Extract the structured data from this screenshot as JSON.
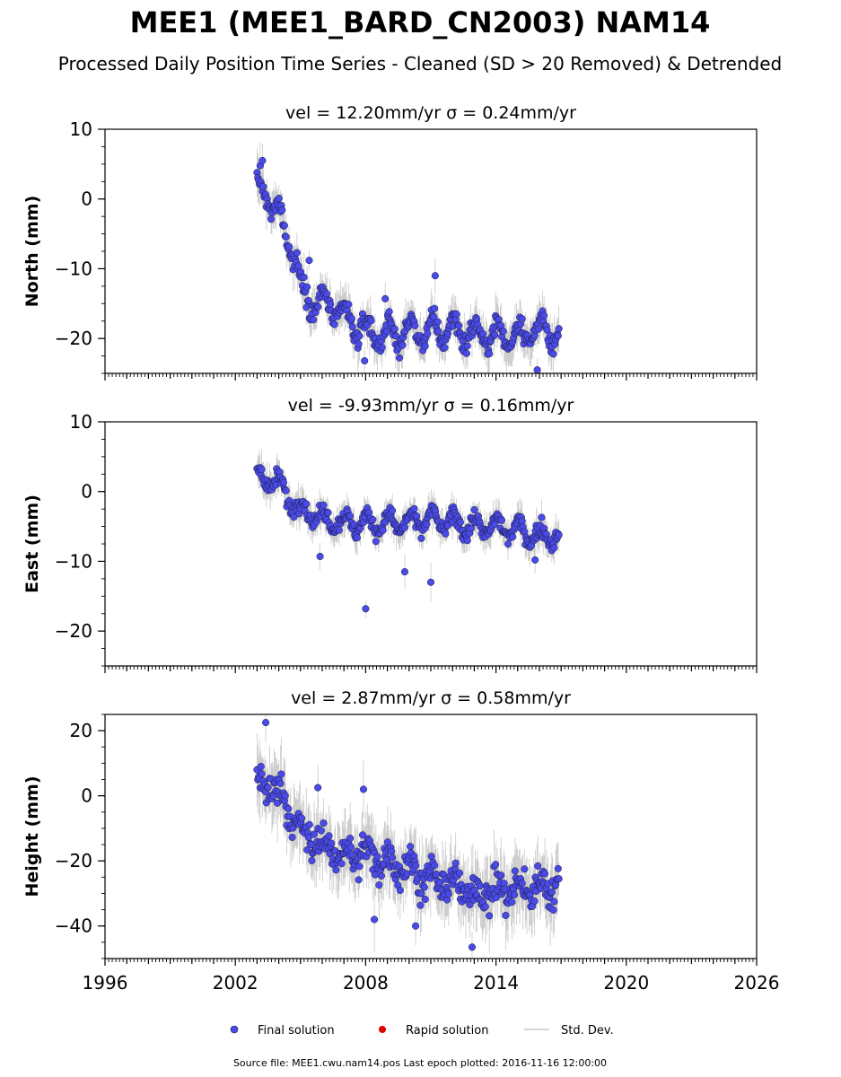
{
  "figure": {
    "title": "MEE1 (MEE1_BARD_CN2003) NAM14",
    "subtitle": "Processed Daily Position Time Series - Cleaned (SD > 20 Removed) & Detrended",
    "footer": "Source file: MEE1.cwu.nam14.pos  Last epoch plotted: 2016-11-16 12:00:00"
  },
  "legend": {
    "placement": "bottom-center",
    "items": [
      {
        "label": "Final solution",
        "color": "#4a4ae6",
        "marker": "circle"
      },
      {
        "label": "Rapid solution",
        "color": "#e00000",
        "marker": "circle"
      },
      {
        "label": "Std. Dev.",
        "color": "#c8c8c8",
        "marker": "line"
      }
    ]
  },
  "colors": {
    "final": "#4a4ae6",
    "final_edge": "#1a1a40",
    "stddev": "#9a9a9a"
  },
  "chart_data": [
    {
      "type": "scatter",
      "title": "vel = 12.20mm/yr   σ = 0.24mm/yr",
      "ylabel": "North (mm)",
      "xlim": [
        1996,
        2026
      ],
      "ylim": [
        -25,
        10
      ],
      "yticks": [
        "10",
        "0",
        "−10",
        "−20"
      ],
      "ytick_values": [
        10,
        0,
        -10,
        -20
      ],
      "series": [
        {
          "name": "Final solution",
          "trend": [
            [
              2003.0,
              1.5
            ],
            [
              2003.5,
              0.5
            ],
            [
              2004.0,
              -2.5
            ],
            [
              2004.5,
              -6.0
            ],
            [
              2004.8,
              -8.5
            ],
            [
              2005.0,
              -13.0
            ],
            [
              2005.5,
              -14.5
            ],
            [
              2006.0,
              -15.0
            ],
            [
              2006.5,
              -15.5
            ],
            [
              2007.0,
              -17.0
            ],
            [
              2007.5,
              -18.0
            ],
            [
              2008.0,
              -19.0
            ],
            [
              2009.0,
              -19.5
            ],
            [
              2010.0,
              -19.0
            ],
            [
              2011.0,
              -19.0
            ],
            [
              2012.0,
              -18.5
            ],
            [
              2013.0,
              -19.5
            ],
            [
              2014.0,
              -19.5
            ],
            [
              2015.0,
              -19.5
            ],
            [
              2016.0,
              -18.5
            ],
            [
              2016.9,
              -20.0
            ]
          ],
          "seasonal_amplitude": 1.8,
          "scatter_sd": 1.0,
          "outliers": [
            [
              2003.25,
              5.5
            ],
            [
              2005.4,
              -8.8
            ],
            [
              2008.9,
              -14.3
            ],
            [
              2011.2,
              -11.0
            ],
            [
              2007.95,
              -23.2
            ],
            [
              2015.9,
              -24.5
            ]
          ]
        }
      ]
    },
    {
      "type": "scatter",
      "title": "vel = -9.93mm/yr   σ = 0.16mm/yr",
      "ylabel": "East (mm)",
      "xlim": [
        1996,
        2026
      ],
      "ylim": [
        -25,
        10
      ],
      "yticks": [
        "10",
        "0",
        "−10",
        "−20"
      ],
      "ytick_values": [
        10,
        0,
        -10,
        -20
      ],
      "series": [
        {
          "name": "Final solution",
          "trend": [
            [
              2003.0,
              2.0
            ],
            [
              2003.5,
              2.0
            ],
            [
              2004.0,
              1.0
            ],
            [
              2004.5,
              -1.0
            ],
            [
              2005.0,
              -2.5
            ],
            [
              2005.5,
              -3.0
            ],
            [
              2006.0,
              -4.0
            ],
            [
              2006.5,
              -4.0
            ],
            [
              2007.0,
              -4.5
            ],
            [
              2008.0,
              -4.5
            ],
            [
              2009.0,
              -4.5
            ],
            [
              2010.0,
              -4.5
            ],
            [
              2011.0,
              -4.0
            ],
            [
              2012.0,
              -4.5
            ],
            [
              2013.0,
              -5.0
            ],
            [
              2014.0,
              -5.0
            ],
            [
              2015.0,
              -5.5
            ],
            [
              2016.0,
              -6.5
            ],
            [
              2016.9,
              -6.0
            ]
          ],
          "seasonal_amplitude": 1.3,
          "scatter_sd": 0.8,
          "outliers": [
            [
              2005.9,
              -9.3
            ],
            [
              2008.0,
              -16.8
            ],
            [
              2009.8,
              -11.5
            ],
            [
              2011.0,
              -13.0
            ],
            [
              2015.8,
              -9.8
            ]
          ]
        }
      ]
    },
    {
      "type": "scatter",
      "title": "vel = 2.87mm/yr   σ = 0.58mm/yr",
      "ylabel": "Height (mm)",
      "xlim": [
        1996,
        2026
      ],
      "ylim": [
        -50,
        25
      ],
      "xticks": [
        "1996",
        "2002",
        "2008",
        "2014",
        "2020",
        "2026"
      ],
      "xtick_values": [
        1996,
        2002,
        2008,
        2014,
        2020,
        2026
      ],
      "yticks": [
        "20",
        "0",
        "−20",
        "−40"
      ],
      "ytick_values": [
        20,
        0,
        -20,
        -40
      ],
      "series": [
        {
          "name": "Final solution",
          "trend": [
            [
              2003.0,
              3.0
            ],
            [
              2003.5,
              4.0
            ],
            [
              2004.0,
              1.0
            ],
            [
              2004.5,
              -4.0
            ],
            [
              2005.0,
              -12.0
            ],
            [
              2005.5,
              -13.0
            ],
            [
              2006.0,
              -15.0
            ],
            [
              2006.5,
              -17.0
            ],
            [
              2007.0,
              -18.0
            ],
            [
              2008.0,
              -18.0
            ],
            [
              2009.0,
              -20.0
            ],
            [
              2010.0,
              -22.0
            ],
            [
              2011.0,
              -26.0
            ],
            [
              2012.0,
              -27.0
            ],
            [
              2013.0,
              -30.0
            ],
            [
              2014.0,
              -29.0
            ],
            [
              2015.0,
              -29.0
            ],
            [
              2016.0,
              -28.0
            ],
            [
              2016.9,
              -27.0
            ]
          ],
          "seasonal_amplitude": 3.0,
          "scatter_sd": 3.5,
          "outliers": [
            [
              2003.4,
              22.5
            ],
            [
              2005.8,
              2.5
            ],
            [
              2007.9,
              2.0
            ],
            [
              2012.9,
              -46.5
            ],
            [
              2008.4,
              -38.0
            ],
            [
              2010.3,
              -40.0
            ]
          ]
        }
      ]
    }
  ]
}
